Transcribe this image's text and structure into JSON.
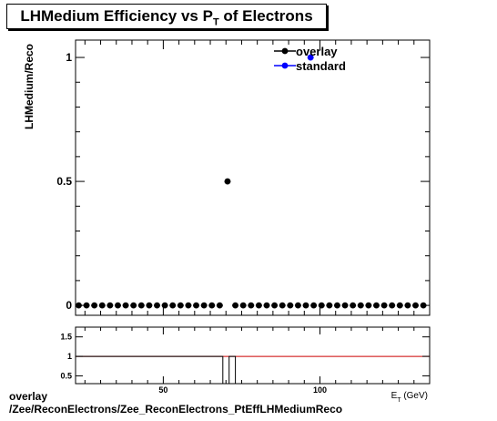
{
  "chart_data": [
    {
      "type": "scatter",
      "title_main": "LHMedium Efficiency vs P",
      "title_sub": "T",
      "title_tail": " of Electrons",
      "ylabel": "LHMedium/Reco",
      "xlim": [
        22,
        135
      ],
      "ylim": [
        -0.04,
        1.07
      ],
      "yticks": [
        0,
        0.5,
        1
      ],
      "ytick_labels": [
        "0",
        "0.5",
        "1"
      ],
      "legend": {
        "placement": "top-right",
        "entries": [
          "overlay",
          "standard"
        ]
      },
      "series": [
        {
          "name": "overlay",
          "color": "#000000",
          "x": [
            23,
            25.5,
            28,
            30.5,
            33,
            35.5,
            38,
            40.5,
            43,
            45.5,
            48,
            50.5,
            53,
            55.5,
            58,
            60.5,
            63,
            65.5,
            68,
            70.5,
            73,
            75.5,
            78,
            80.5,
            83,
            85.5,
            88,
            90.5,
            93,
            95.5,
            98,
            100.5,
            103,
            105.5,
            108,
            110.5,
            113,
            115.5,
            118,
            120.5,
            123,
            125.5,
            128,
            130.5,
            133
          ],
          "y": [
            0,
            0,
            0,
            0,
            0,
            0,
            0,
            0,
            0,
            0,
            0,
            0,
            0,
            0,
            0,
            0,
            0,
            0,
            0,
            0.5,
            0,
            0,
            0,
            0,
            0,
            0,
            0,
            0,
            0,
            0,
            0,
            0,
            0,
            0,
            0,
            0,
            0,
            0,
            0,
            0,
            0,
            0,
            0,
            0,
            0
          ]
        },
        {
          "name": "standard",
          "color": "#0000ff",
          "x": [
            97
          ],
          "y": [
            1
          ]
        }
      ]
    },
    {
      "type": "line",
      "xlim": [
        22,
        135
      ],
      "ylim": [
        0.3,
        1.75
      ],
      "yticks": [
        0.5,
        1,
        1.5
      ],
      "ytick_labels": [
        "0.5",
        "1",
        "1.5"
      ],
      "xticks": [
        50,
        100
      ],
      "xtick_labels": [
        "50",
        "100"
      ],
      "xlabel": "E_T (GeV)",
      "reference_line": {
        "y": 1,
        "color": "#cc0000"
      },
      "ratio_series": {
        "x": [
          22,
          69,
          69,
          71,
          71,
          73,
          73,
          135
        ],
        "y": [
          1,
          1,
          0.3,
          0.3,
          1,
          1,
          0.3,
          0.3
        ]
      }
    }
  ],
  "footer": {
    "line1": "overlay",
    "line2": "/Zee/ReconElectrons/Zee_ReconElectrons_PtEffLHMediumReco"
  }
}
